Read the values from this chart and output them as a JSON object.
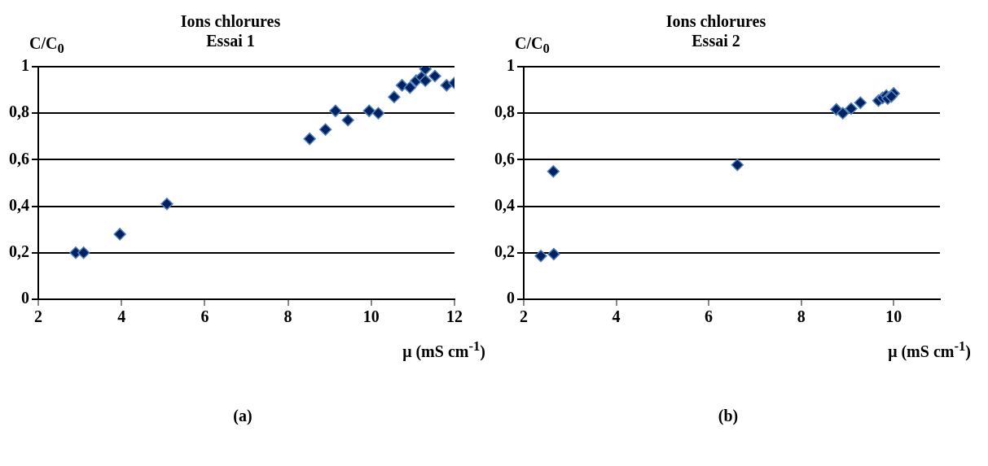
{
  "chart_data": [
    {
      "type": "scatter",
      "title": "Ions chlorures\nEssai 1",
      "ylabel": "C/C$_{0}$",
      "xlabel": "μ (mS cm$^{-1}$)",
      "annotations": [
        "(a)"
      ],
      "series": [
        {
          "color": "#002060",
          "x": [
            2.9,
            3.09,
            3.96,
            5.09,
            8.52,
            8.9,
            9.14,
            9.44,
            9.95,
            10.17,
            10.55,
            10.74,
            10.93,
            11.08,
            11.21,
            11.3,
            11.3,
            11.53,
            11.81,
            12.0
          ],
          "values": [
            0.2,
            0.2,
            0.28,
            0.41,
            0.69,
            0.73,
            0.81,
            0.77,
            0.81,
            0.8,
            0.87,
            0.92,
            0.91,
            0.94,
            0.955,
            0.99,
            0.94,
            0.96,
            0.92,
            0.93
          ]
        }
      ],
      "xlim": [
        2,
        12
      ],
      "xticks": [
        2,
        4,
        6,
        8,
        10,
        12
      ],
      "ylim": [
        0,
        1
      ],
      "yticks": [
        {
          "value": 0,
          "label": "0"
        },
        {
          "value": 0.2,
          "label": "0,2"
        },
        {
          "value": 0.4,
          "label": "0,4"
        },
        {
          "value": 0.6,
          "label": "0,6"
        },
        {
          "value": 0.8,
          "label": "0,8"
        },
        {
          "value": 1,
          "label": "1"
        }
      ],
      "grid": "y",
      "legend": false,
      "marker": "diamond"
    },
    {
      "type": "scatter",
      "title": "Ions chlorures\nEssai 2",
      "ylabel": "C/C$_{0}$",
      "xlabel": "μ (mS cm$^{-1}$)",
      "annotations": [
        "(b)"
      ],
      "series": [
        {
          "color": "#002060",
          "x": [
            2.37,
            2.65,
            2.64,
            6.62,
            8.76,
            8.9,
            9.08,
            9.28,
            9.67,
            9.76,
            9.84,
            9.87,
            10.0,
            9.95
          ],
          "values": [
            0.186,
            0.194,
            0.55,
            0.578,
            0.816,
            0.8,
            0.82,
            0.845,
            0.854,
            0.866,
            0.876,
            0.863,
            0.885,
            0.872
          ]
        }
      ],
      "xlim": [
        2,
        11
      ],
      "xticks": [
        2,
        4,
        6,
        8,
        10
      ],
      "ylim": [
        0,
        1
      ],
      "yticks": [
        {
          "value": 0,
          "label": "0"
        },
        {
          "value": 0.2,
          "label": "0,2"
        },
        {
          "value": 0.4,
          "label": "0,4"
        },
        {
          "value": 0.6,
          "label": "0,6"
        },
        {
          "value": 0.8,
          "label": "0,8"
        },
        {
          "value": 1,
          "label": "1"
        }
      ],
      "grid": "y",
      "legend": false,
      "marker": "diamond"
    }
  ]
}
